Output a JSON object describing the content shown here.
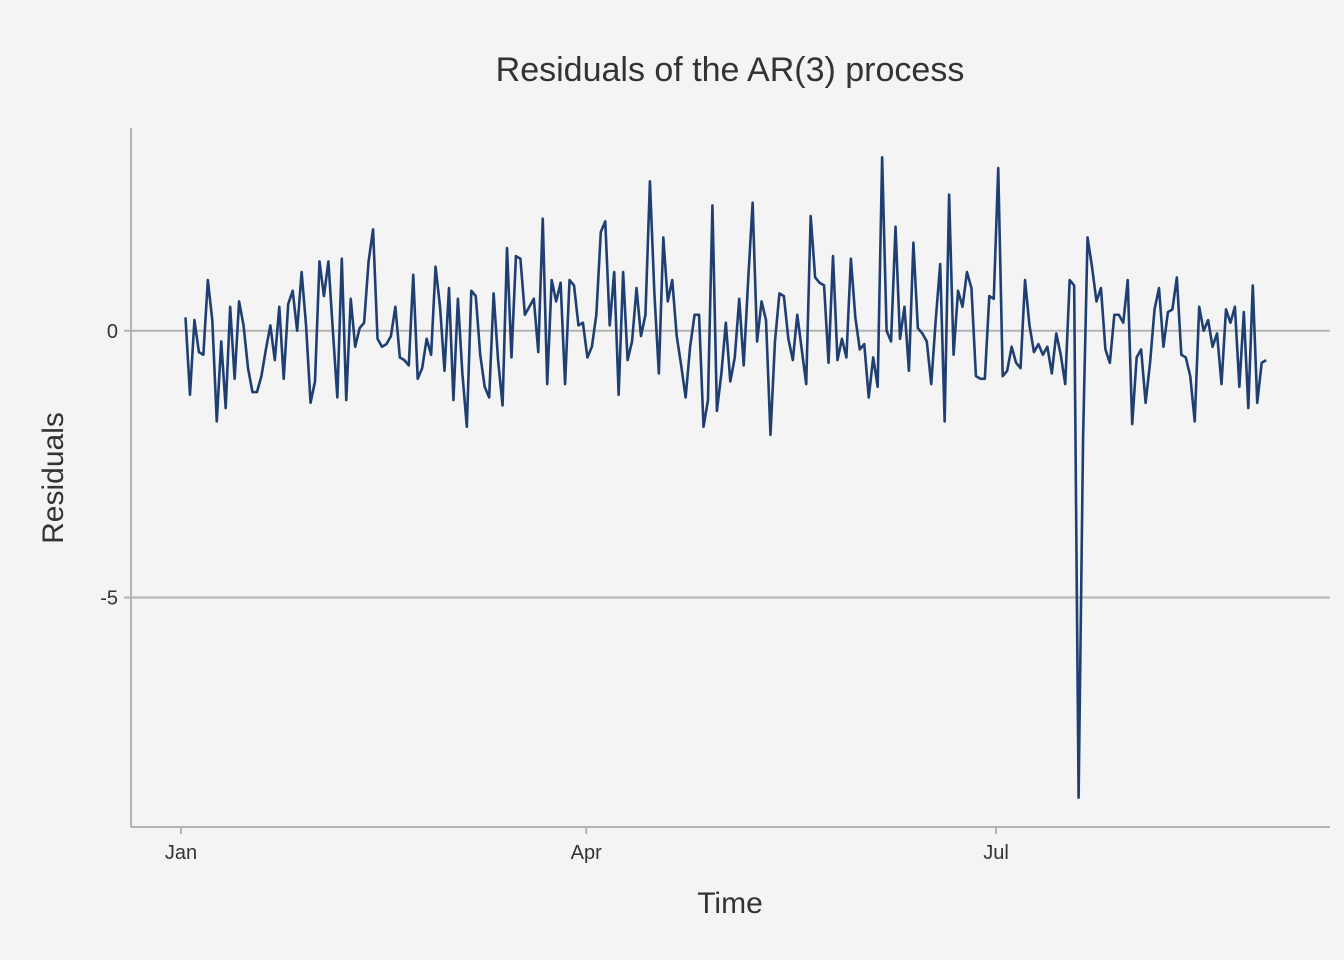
{
  "chart_data": {
    "type": "line",
    "title": "Residuals of the AR(3) process",
    "xlabel": "Time",
    "ylabel": "Residuals",
    "x_ticks": [
      "Jan",
      "Apr",
      "Jul"
    ],
    "y_ticks": [
      0,
      -5
    ],
    "grid": "horizontal major at y ticks",
    "legend": "none",
    "ylim": [
      -9.3,
      3.8
    ],
    "x_start": "Jan 1",
    "x_end": "Aug 30",
    "colors": {
      "line": "#1f3f73",
      "background": "#f4f4f4",
      "grid": "#b3b3b3"
    },
    "series": [
      {
        "values": [
          0.25,
          -1.2,
          0.2,
          -0.4,
          -0.45,
          0.95,
          0.2,
          -1.7,
          -0.2,
          -1.45,
          0.45,
          -0.9,
          0.55,
          0.1,
          -0.7,
          -1.15,
          -1.15,
          -0.85,
          -0.35,
          0.1,
          -0.55,
          0.45,
          -0.9,
          0.5,
          0.75,
          0.0,
          1.1,
          0.1,
          -1.35,
          -0.95,
          1.3,
          0.65,
          1.3,
          0.0,
          -1.25,
          1.35,
          -1.3,
          0.6,
          -0.3,
          0.05,
          0.15,
          1.3,
          1.9,
          -0.15,
          -0.3,
          -0.25,
          -0.1,
          0.45,
          -0.5,
          -0.55,
          -0.65,
          1.05,
          -0.9,
          -0.7,
          -0.15,
          -0.45,
          1.2,
          0.45,
          -0.75,
          0.8,
          -1.3,
          0.6,
          -0.8,
          -1.8,
          0.75,
          0.65,
          -0.45,
          -1.05,
          -1.25,
          0.7,
          -0.55,
          -1.4,
          1.55,
          -0.5,
          1.4,
          1.35,
          0.3,
          0.45,
          0.6,
          -0.4,
          2.1,
          -1.0,
          0.95,
          0.55,
          0.9,
          -1.0,
          0.95,
          0.85,
          0.1,
          0.15,
          -0.5,
          -0.3,
          0.3,
          1.85,
          2.05,
          0.1,
          1.1,
          -1.2,
          1.1,
          -0.55,
          -0.2,
          0.8,
          -0.1,
          0.3,
          2.8,
          0.7,
          -0.8,
          1.75,
          0.55,
          0.95,
          -0.1,
          -0.65,
          -1.25,
          -0.3,
          0.3,
          0.3,
          -1.8,
          -1.3,
          2.35,
          -1.5,
          -0.8,
          0.15,
          -0.95,
          -0.5,
          0.6,
          -0.65,
          0.95,
          2.4,
          -0.2,
          0.55,
          0.2,
          -1.95,
          -0.2,
          0.7,
          0.65,
          -0.15,
          -0.55,
          0.3,
          -0.35,
          -1.0,
          2.15,
          1.0,
          0.9,
          0.85,
          -0.6,
          1.4,
          -0.55,
          -0.15,
          -0.5,
          1.35,
          0.25,
          -0.35,
          -0.25,
          -1.25,
          -0.5,
          -1.05,
          3.25,
          0.0,
          -0.2,
          1.95,
          -0.15,
          0.45,
          -0.75,
          1.65,
          0.05,
          -0.05,
          -0.2,
          -1.0,
          0.2,
          1.25,
          -1.7,
          2.55,
          -0.45,
          0.75,
          0.45,
          1.1,
          0.8,
          -0.85,
          -0.9,
          -0.9,
          0.65,
          0.6,
          3.05,
          -0.85,
          -0.75,
          -0.3,
          -0.6,
          -0.7,
          0.95,
          0.1,
          -0.4,
          -0.25,
          -0.45,
          -0.3,
          -0.8,
          -0.05,
          -0.45,
          -1.0,
          0.95,
          0.85,
          -8.75,
          -2.0,
          1.75,
          1.2,
          0.55,
          0.8,
          -0.35,
          -0.6,
          0.3,
          0.3,
          0.15,
          0.95,
          -1.75,
          -0.5,
          -0.35,
          -1.35,
          -0.6,
          0.4,
          0.8,
          -0.3,
          0.35,
          0.4,
          1.0,
          -0.45,
          -0.5,
          -0.85,
          -1.7,
          0.45,
          0.0,
          0.2,
          -0.3,
          -0.05,
          -1.0,
          0.4,
          0.15,
          0.45,
          -1.05,
          0.35,
          -1.45,
          0.85,
          -1.35,
          -0.6,
          -0.55
        ]
      }
    ]
  }
}
